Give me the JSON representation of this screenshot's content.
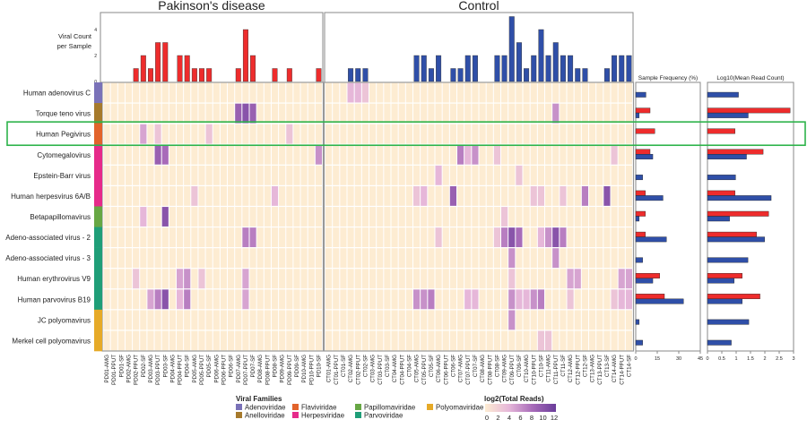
{
  "chart_data": {
    "type": "heatmap",
    "groups": [
      {
        "title": "Pakinson's disease",
        "color": "#ee2c2c",
        "samples": [
          "PD01-AMG",
          "PD01-PPUT",
          "PD01-SF",
          "PD02-AMG",
          "PD02-PPUT",
          "PD02-SF",
          "PD03-AMG",
          "PD03-PPUT",
          "PD03-SF",
          "PD04-AMG",
          "PD04-PPUT",
          "PD04-SF",
          "PD05-AMG",
          "PD05-PPUT",
          "PD05-SF",
          "PD06-AMG",
          "PD06-PPUT",
          "PD06-SF",
          "PD07-AMG",
          "PD07-PPUT",
          "PD07-SF",
          "PD08-AMG",
          "PD08-PPUT",
          "PD08-SF",
          "PD09-AMG",
          "PD09-PPUT",
          "PD09-SF",
          "PD10-AMG",
          "PD10-PPUT",
          "PD10-SF"
        ],
        "viral_count": [
          0,
          0,
          0,
          0,
          1,
          2,
          1,
          3,
          3,
          0,
          2,
          2,
          1,
          1,
          1,
          0,
          0,
          0,
          1,
          4,
          2,
          0,
          0,
          1,
          0,
          1,
          0,
          0,
          0,
          1
        ]
      },
      {
        "title": "Control",
        "color": "#2f4fa8",
        "samples": [
          "CT01-AMG",
          "CT01-PPUT",
          "CT01-SF",
          "CT02-AMG",
          "CT02-PPUT",
          "CT02-SF",
          "CT03-AMG",
          "CT03-PPUT",
          "CT03-SF",
          "CT04-AMG",
          "CT04-PPUT",
          "CT04-SF",
          "CT05-AMG",
          "CT05-PPUT",
          "CT05-SF",
          "CT06-AMG",
          "CT06-PPUT",
          "CT06-SF",
          "CT07-AMG",
          "CT07-PPUT",
          "CT07-SF",
          "CT08-AMG",
          "CT08-PPUT",
          "CT08-SF",
          "CT09-AMG",
          "CT09-PPUT",
          "CT09-SF",
          "CT10-AMG",
          "CT10-PPUT",
          "CT10-SF",
          "CT11-AMG",
          "CT11-PPUT",
          "CT11-SF",
          "CT12-AMG",
          "CT12-PPUT",
          "CT12-SF",
          "CT13-AMG",
          "CT13-PPUT",
          "CT13-SF",
          "CT14-AMG",
          "CT14-PPUT",
          "CT14-SF"
        ],
        "viral_count": [
          0,
          0,
          0,
          1,
          1,
          1,
          0,
          0,
          0,
          0,
          0,
          0,
          2,
          2,
          1,
          2,
          0,
          1,
          1,
          2,
          2,
          0,
          0,
          2,
          2,
          5,
          3,
          1,
          2,
          4,
          2,
          3,
          2,
          2,
          1,
          1,
          0,
          0,
          1,
          2,
          2,
          2
        ]
      }
    ],
    "bar_ylabel": [
      "Viral Count",
      "per Sample"
    ],
    "bar_yticks": [
      0,
      2,
      4
    ],
    "viruses": [
      {
        "name": "Human adenovirus C",
        "family": "Adenoviridae",
        "freq": [
          0,
          7.1
        ],
        "log10_mean": [
          0,
          1.08
        ],
        "reads": {
          "CT02-AMG": 4,
          "CT02-PPUT": 4,
          "CT02-SF": 3
        }
      },
      {
        "name": "Torque teno virus",
        "family": "Anelloviridae",
        "freq": [
          10,
          2.4
        ],
        "log10_mean": [
          2.88,
          1.42
        ],
        "reads": {
          "PD07-AMG": 9,
          "PD07-PPUT": 10,
          "PD07-SF": 9,
          "CT11-PPUT": 6
        }
      },
      {
        "name": "Human Pegivirus",
        "family": "Flaviviridae",
        "freq": [
          13.3,
          0
        ],
        "log10_mean": [
          0.96,
          0
        ],
        "reads": {
          "PD02-SF": 5,
          "PD03-PPUT": 3,
          "PD05-SF": 3,
          "PD09-PPUT": 3
        }
      },
      {
        "name": "Cytomegalovirus",
        "family": "Herpesviridae",
        "freq": [
          10,
          11.9
        ],
        "log10_mean": [
          1.94,
          1.36
        ],
        "reads": {
          "PD03-PPUT": 9,
          "PD03-SF": 8,
          "PD10-SF": 6,
          "CT07-AMG": 7,
          "CT07-PPUT": 4,
          "CT07-SF": 6,
          "CT08-SF": 3,
          "CT14-AMG": 3
        }
      },
      {
        "name": "Epstein-Barr virus",
        "family": "Herpesviridae",
        "freq": [
          0,
          4.8
        ],
        "log10_mean": [
          0,
          0.98
        ],
        "reads": {
          "CT06-AMG": 4,
          "CT09-SF": 3
        }
      },
      {
        "name": "Human herpesvirus 6A/B",
        "family": "Herpesviridae",
        "freq": [
          6.7,
          19
        ],
        "log10_mean": [
          0.96,
          2.22
        ],
        "reads": {
          "PD05-AMG": 3,
          "PD08-SF": 4,
          "CT05-AMG": 3,
          "CT05-PPUT": 4,
          "CT06-SF": 9,
          "CT10-PPUT": 3,
          "CT10-SF": 3,
          "CT11-SF": 3,
          "CT12-SF": 7,
          "CT13-SF": 10
        }
      },
      {
        "name": "Betapapillomavirus",
        "family": "Papillomaviridae",
        "freq": [
          6.7,
          2.4
        ],
        "log10_mean": [
          2.13,
          0.77
        ],
        "reads": {
          "PD02-SF": 4,
          "PD03-SF": 10,
          "CT09-AMG": 3
        }
      },
      {
        "name": "Adeno-associated virus - 2",
        "family": "Parvoviridae",
        "freq": [
          6.7,
          21.4
        ],
        "log10_mean": [
          1.71,
          1.99
        ],
        "reads": {
          "PD07-PPUT": 7,
          "PD07-SF": 7,
          "CT06-AMG": 3,
          "CT08-SF": 3,
          "CT09-AMG": 7,
          "CT09-PPUT": 10,
          "CT09-SF": 8,
          "CT10-SF": 4,
          "CT11-AMG": 6,
          "CT11-PPUT": 10,
          "CT11-SF": 7
        }
      },
      {
        "name": "Adeno-associated virus - 3",
        "family": "Parvoviridae",
        "freq": [
          0,
          4.8
        ],
        "log10_mean": [
          0,
          1.41
        ],
        "reads": {
          "CT09-PPUT": 6,
          "CT11-PPUT": 6
        }
      },
      {
        "name": "Human erythrovirus V9",
        "family": "Parvoviridae",
        "freq": [
          16.7,
          11.9
        ],
        "log10_mean": [
          1.21,
          0.93
        ],
        "reads": {
          "PD02-PPUT": 3,
          "PD04-PPUT": 5,
          "PD04-SF": 6,
          "PD05-PPUT": 3,
          "PD07-PPUT": 5,
          "CT09-PPUT": 3,
          "CT12-AMG": 5,
          "CT12-PPUT": 5,
          "CT14-PPUT": 5,
          "CT14-SF": 5
        }
      },
      {
        "name": "Human parvovirus B19",
        "family": "Parvoviridae",
        "freq": [
          20,
          33.3
        ],
        "log10_mean": [
          1.83,
          1.21
        ],
        "reads": {
          "PD03-AMG": 5,
          "PD03-PPUT": 7,
          "PD03-SF": 10,
          "PD04-PPUT": 4,
          "PD04-SF": 7,
          "PD07-PPUT": 5,
          "CT05-AMG": 6,
          "CT05-PPUT": 6,
          "CT05-SF": 7,
          "CT07-PPUT": 4,
          "CT07-SF": 4,
          "CT09-PPUT": 6,
          "CT09-SF": 4,
          "CT10-AMG": 4,
          "CT10-PPUT": 6,
          "CT10-SF": 7,
          "CT12-AMG": 3,
          "CT14-AMG": 3,
          "CT14-PPUT": 4,
          "CT14-SF": 4
        }
      },
      {
        "name": "JC polyomavirus",
        "family": "Polyomaviridae",
        "freq": [
          0,
          2.4
        ],
        "log10_mean": [
          0,
          1.44
        ],
        "reads": {
          "CT09-PPUT": 6
        }
      },
      {
        "name": "Merkel cell polyomavirus",
        "family": "Polyomaviridae",
        "freq": [
          0,
          4.8
        ],
        "log10_mean": [
          0,
          0.83
        ],
        "reads": {
          "CT10-SF": 3,
          "CT11-AMG": 3
        }
      }
    ],
    "highlighted_row": "Human Pegivirus",
    "highlight_color": "#2db34a",
    "freq_panel": {
      "title": "Sample Frequency (%)",
      "xlim": [
        0,
        45
      ],
      "ticks": [
        "0",
        "15",
        "30",
        "45"
      ]
    },
    "log_panel": {
      "title": "Log10(Mean Read Count)",
      "xlim": [
        0,
        3
      ],
      "ticks": [
        "0",
        "0.5",
        "1",
        "1.5",
        "2",
        "2.5",
        "3"
      ]
    },
    "families_legend": {
      "title": "Viral Families",
      "items": [
        {
          "name": "Adenoviridae",
          "color": "#7a72b8"
        },
        {
          "name": "Anelloviridae",
          "color": "#a67a2c"
        },
        {
          "name": "Flaviviridae",
          "color": "#e2632b"
        },
        {
          "name": "Herpesviridae",
          "color": "#e62a8a"
        },
        {
          "name": "Papillomaviridae",
          "color": "#67a744"
        },
        {
          "name": "Parvoviridae",
          "color": "#1f9e78"
        },
        {
          "name": "Polyomaviridae",
          "color": "#e6aa28"
        }
      ]
    },
    "color_scale": {
      "title": "log2(Total Reads)",
      "range": [
        0,
        12
      ],
      "ticks": [
        "0",
        "2",
        "4",
        "6",
        "8",
        "10",
        "12"
      ],
      "stops": [
        "#fdecd2",
        "#e6b7d9",
        "#a86bb9",
        "#6a3d9a"
      ]
    }
  }
}
